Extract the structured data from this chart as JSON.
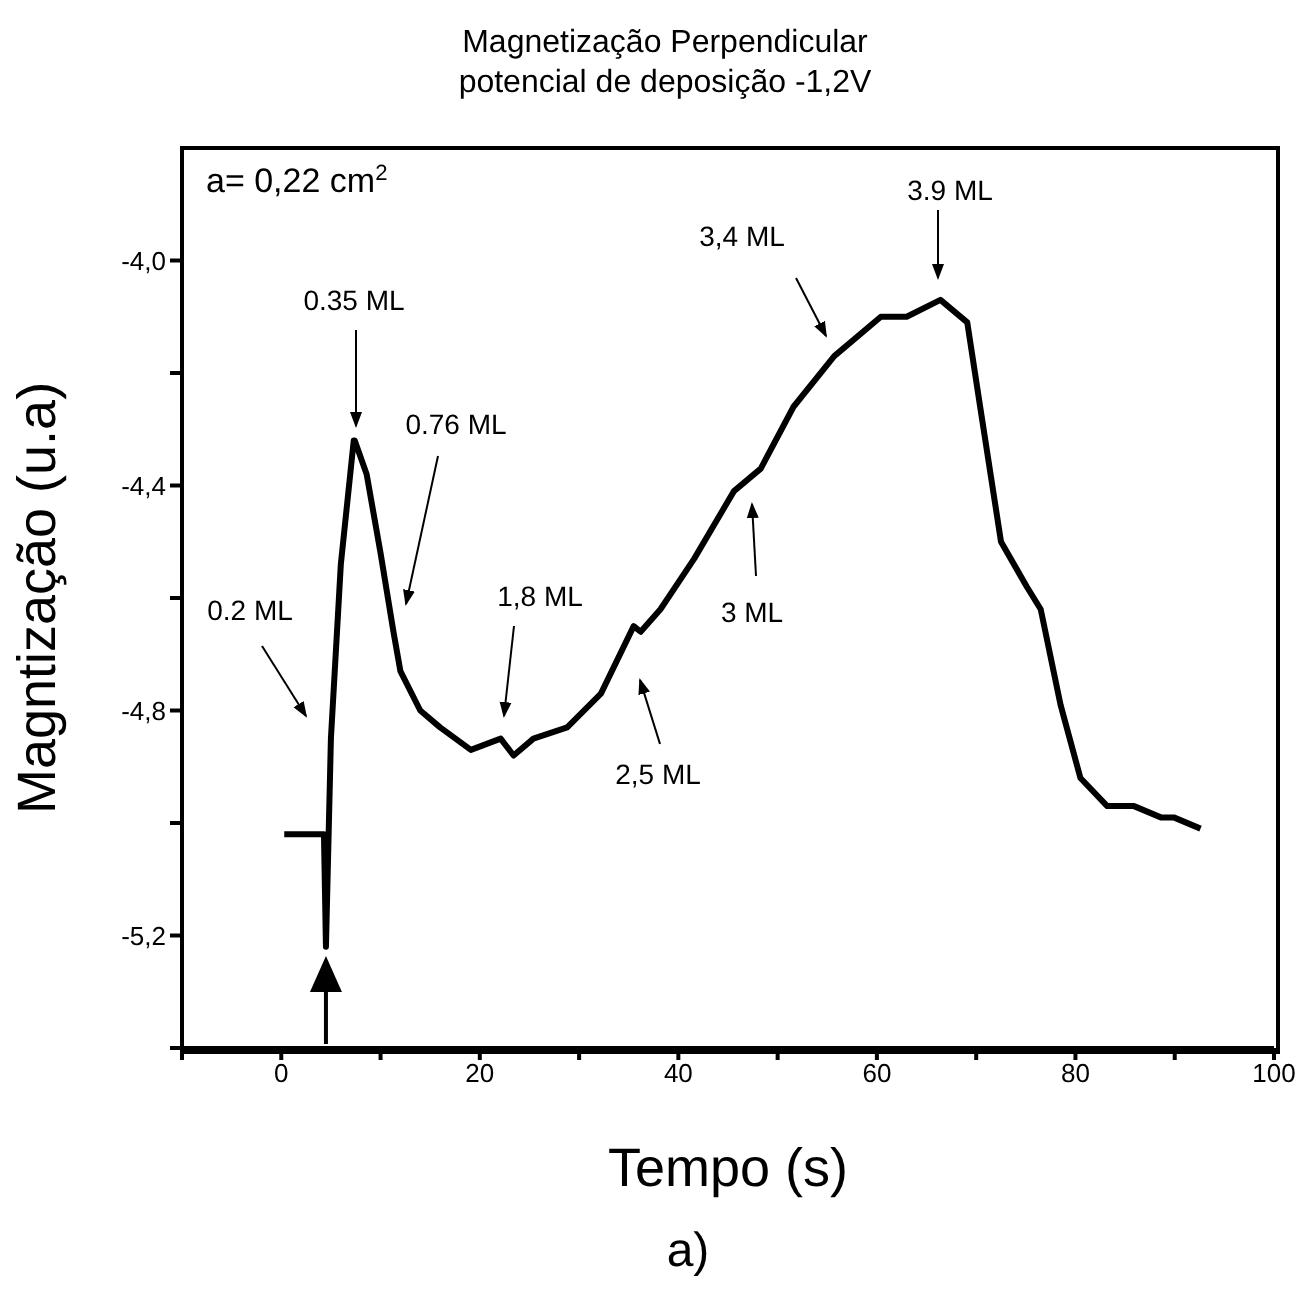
{
  "chart_data": {
    "type": "line",
    "title": "Magnetização Perpendicular",
    "subtitle": "potencial de deposição -1,2V",
    "xlabel": "Tempo (s)",
    "ylabel": "Magntização (u.a)",
    "x": [
      0.3,
      4.3,
      4.5,
      5.0,
      6.0,
      7.3,
      7.4,
      8.6,
      10.0,
      11.3,
      12.0,
      14.0,
      16.0,
      19.1,
      22.1,
      23.4,
      25.4,
      28.8,
      32.2,
      35.5,
      36.2,
      38.2,
      41.6,
      45.6,
      48.3,
      51.6,
      55.7,
      60.4,
      63.0,
      66.4,
      69.1,
      70.4,
      72.5,
      75.1,
      76.5,
      78.5,
      80.5,
      83.2,
      85.9,
      88.6,
      89.9,
      92.6
    ],
    "series": [
      {
        "color": "#000000",
        "values": [
          -5.02,
          -5.02,
          -5.22,
          -4.85,
          -4.54,
          -4.32,
          -4.32,
          -4.38,
          -4.52,
          -4.66,
          -4.73,
          -4.8,
          -4.83,
          -4.87,
          -4.85,
          -4.88,
          -4.85,
          -4.83,
          -4.77,
          -4.65,
          -4.66,
          -4.62,
          -4.53,
          -4.41,
          -4.37,
          -4.26,
          -4.17,
          -4.1,
          -4.1,
          -4.07,
          -4.11,
          -4.26,
          -4.5,
          -4.58,
          -4.62,
          -4.79,
          -4.92,
          -4.97,
          -4.97,
          -4.99,
          -4.99,
          -5.01
        ]
      }
    ],
    "xlim": [
      -10,
      100
    ],
    "xticks": [
      {
        "value": -10,
        "label": null
      },
      0,
      {
        "value": 10,
        "label": null
      },
      20,
      {
        "value": 30,
        "label": null
      },
      40,
      {
        "value": 50,
        "label": null
      },
      60,
      {
        "value": 70,
        "label": null
      },
      80,
      {
        "value": 90,
        "label": null
      },
      100
    ],
    "ylim": [
      -5.4,
      -3.8
    ],
    "yticks": [
      {
        "value": -5.4,
        "label": null
      },
      {
        "value": -5.2,
        "label": "-5,2"
      },
      {
        "value": -5.0,
        "label": null
      },
      {
        "value": -4.8,
        "label": "-4,8"
      },
      {
        "value": -4.6,
        "label": null
      },
      {
        "value": -4.4,
        "label": "-4,4"
      },
      {
        "value": -4.2,
        "label": null
      },
      {
        "value": -4.0,
        "label": "-4,0"
      }
    ],
    "marker": "none",
    "line_style": "solid",
    "annotations": [
      "a= 0,22 cm$^{2}$",
      "a)",
      "0.2 ML",
      "0.35 ML",
      "0.76 ML",
      "1,8 ML",
      "2,5 ML",
      "3 ML",
      "3,4 ML",
      "3.9 ML"
    ]
  }
}
